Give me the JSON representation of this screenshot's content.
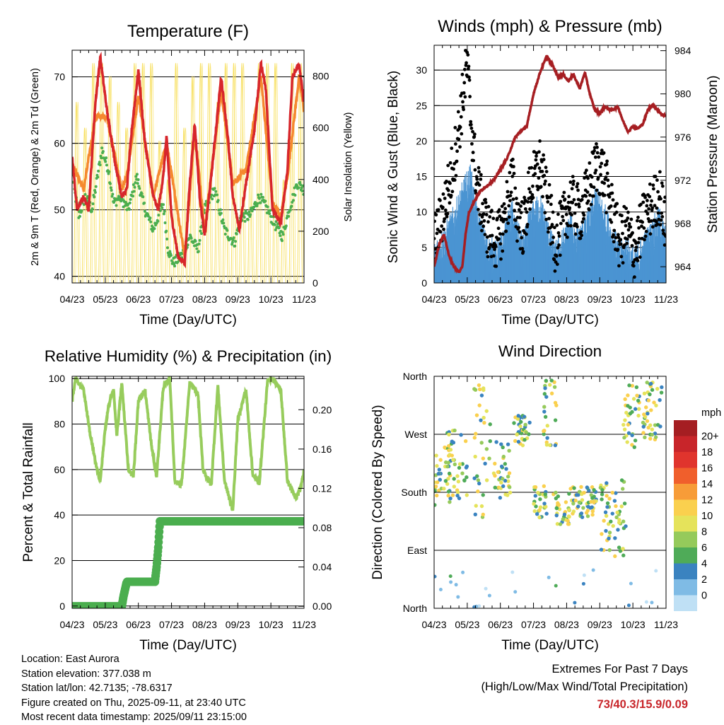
{
  "panels": {
    "temperature": {
      "title": "Temperature (F)",
      "xlabel": "Time (Day/UTC)",
      "ylabel_left": "2m & 9m T (Red, Orange) & 2m Td (Green)",
      "ylabel_right": "Solar Insolation (Yellow)"
    },
    "winds": {
      "title": "Winds (mph) & Pressure (mb)",
      "xlabel": "Time (Day/UTC)",
      "ylabel_left": "Sonic Wind & Gust (Blue, Black)",
      "ylabel_right": "Station Pressure (Maroon)"
    },
    "humidity": {
      "title": "Relative Humidity (%) & Precipitation (in)",
      "xlabel": "Time (Day/UTC)",
      "ylabel_left": "Percent & Total Rainfall"
    },
    "direction": {
      "title": "Wind Direction",
      "xlabel": "Time (Day/UTC)",
      "ylabel_left": "Direction (Colored By Speed)",
      "legend_title": "mph"
    }
  },
  "footer": {
    "location": "Location: East Aurora",
    "elevation": "Station elevation: 377.038 m",
    "latlon": "Station lat/lon: 42.7135; -78.6317",
    "created": "Figure created on Thu, 2025-09-11, at 23:40 UTC",
    "latest": "Most recent data timestamp: 2025/09/11 23:15:00"
  },
  "extremes": {
    "line1": "Extremes For Past 7 Days",
    "line2": "(High/Low/Max Wind/Total Precipitation)",
    "values": "73/40.3/15.9/0.09"
  },
  "colors": {
    "temp_2m": "#d7262b",
    "temp_9m": "#f5892f",
    "dewpoint": "#4bae4f",
    "solar": "#f7df5e",
    "wind": "#4b94d2",
    "gust": "#000000",
    "pressure": "#a61e22",
    "rh": "#97cc5c",
    "precip": "#4bae4f"
  },
  "chart_data": [
    {
      "type": "line",
      "id": "temperature",
      "title": "Temperature (F)",
      "xlabel": "Time (Day/UTC)",
      "ylabel": "2m & 9m T (Red, Orange) & 2m Td (Green)",
      "y2label": "Solar Insolation (Yellow)",
      "x_ticks": [
        "04/23",
        "05/23",
        "06/23",
        "07/23",
        "08/23",
        "09/23",
        "10/23",
        "11/23"
      ],
      "xlim": [
        0,
        7
      ],
      "ylim": [
        39,
        74
      ],
      "y_ticks": [
        40,
        50,
        60,
        70
      ],
      "y2lim": [
        0,
        900
      ],
      "y2_ticks": [
        0,
        200,
        400,
        600,
        800
      ],
      "grid": "horizontal",
      "series": [
        {
          "name": "2m T",
          "color": "#d7262b",
          "x": [
            0,
            0.15,
            0.35,
            0.5,
            0.7,
            0.85,
            1.05,
            1.3,
            1.5,
            1.65,
            1.8,
            2.0,
            2.2,
            2.45,
            2.6,
            2.75,
            2.85,
            3.0,
            3.2,
            3.4,
            3.55,
            3.7,
            3.85,
            4.0,
            4.2,
            4.5,
            4.7,
            4.85,
            5.05,
            5.25,
            5.5,
            5.7,
            5.85,
            6.05,
            6.3,
            6.5,
            6.65,
            6.85,
            7.0
          ],
          "y": [
            58,
            50,
            52,
            50,
            66,
            73,
            65,
            57,
            52,
            53,
            62,
            71,
            60,
            52,
            50,
            55,
            61,
            49,
            43,
            42,
            54,
            63,
            52,
            46,
            55,
            70,
            61,
            52,
            47,
            54,
            62,
            72,
            68,
            50,
            48,
            56,
            70,
            72,
            66
          ]
        },
        {
          "name": "9m T",
          "color": "#f5892f",
          "x": [
            0,
            0.35,
            0.7,
            1.05,
            1.5,
            1.65,
            2.0,
            2.45,
            2.85,
            3.4,
            3.7,
            4.0,
            4.5,
            4.85,
            5.25,
            5.7,
            6.05,
            6.3,
            6.5,
            6.85,
            7.0
          ],
          "y": [
            57,
            53,
            64,
            64,
            53,
            55,
            67,
            52,
            60,
            43,
            62,
            47,
            68,
            54,
            56,
            70,
            51,
            49,
            55,
            70,
            65
          ]
        },
        {
          "name": "2m Td",
          "color": "#4bae4f",
          "x": [
            0,
            0.2,
            0.4,
            0.6,
            0.9,
            1.1,
            1.25,
            1.45,
            1.7,
            1.95,
            2.2,
            2.45,
            2.75,
            2.9,
            3.05,
            3.3,
            3.55,
            3.8,
            4.0,
            4.3,
            4.6,
            4.9,
            5.1,
            5.35,
            5.65,
            5.9,
            6.1,
            6.35,
            6.55,
            6.8,
            7.0
          ],
          "y": [
            55,
            49,
            52,
            50,
            59,
            56,
            51,
            52,
            50,
            55,
            50,
            47,
            51,
            44,
            42,
            43,
            46,
            44,
            50,
            53,
            47,
            45,
            49,
            49,
            52,
            50,
            48,
            46,
            50,
            54,
            53
          ]
        }
      ],
      "solar_insolation": {
        "name": "Solar Insolation",
        "color": "#f7df5e",
        "axis": "y2",
        "daily_peaks": [
          700,
          600,
          850,
          850,
          800,
          700,
          600,
          850,
          850,
          850,
          550,
          400,
          850,
          600,
          800,
          850,
          850,
          700,
          850,
          850,
          850,
          500,
          850,
          850,
          850,
          400,
          850,
          850
        ],
        "pattern": "daily"
      }
    },
    {
      "type": "line",
      "id": "winds",
      "title": "Winds (mph) & Pressure (mb)",
      "xlabel": "Time (Day/UTC)",
      "ylabel": "Sonic Wind & Gust (Blue, Black)",
      "y2label": "Station Pressure (Maroon)",
      "x_ticks": [
        "04/23",
        "05/23",
        "06/23",
        "07/23",
        "08/23",
        "09/23",
        "10/23",
        "11/23"
      ],
      "xlim": [
        0,
        7
      ],
      "ylim": [
        0,
        33.5
      ],
      "y_ticks": [
        0,
        5,
        10,
        15,
        20,
        25,
        30
      ],
      "y2lim": [
        962.5,
        984.5
      ],
      "y2_ticks": [
        964,
        968,
        972,
        976,
        980,
        984
      ],
      "grid": "horizontal",
      "series": [
        {
          "name": "Sonic Wind",
          "color": "#4b94d2",
          "x": [
            0,
            0.25,
            0.5,
            0.75,
            0.9,
            1.1,
            1.3,
            1.6,
            1.9,
            2.1,
            2.35,
            2.5,
            2.7,
            2.9,
            3.2,
            3.45,
            3.65,
            3.9,
            4.1,
            4.4,
            4.7,
            4.9,
            5.1,
            5.35,
            5.6,
            5.8,
            6.05,
            6.3,
            6.55,
            6.8,
            7.0
          ],
          "y": [
            3,
            5,
            7,
            10,
            12,
            14,
            8,
            4,
            3,
            5,
            9,
            6,
            4,
            8,
            10,
            6,
            3,
            5,
            7,
            5,
            8,
            11,
            9,
            6,
            3,
            4,
            2,
            4,
            6,
            8,
            5
          ]
        },
        {
          "name": "Gust",
          "color": "#000000",
          "x": [
            0,
            0.25,
            0.5,
            0.75,
            0.9,
            1.0,
            1.1,
            1.3,
            1.6,
            1.9,
            2.1,
            2.35,
            2.5,
            2.7,
            2.9,
            3.2,
            3.45,
            3.65,
            3.9,
            4.1,
            4.4,
            4.7,
            4.9,
            5.1,
            5.35,
            5.6,
            5.8,
            6.05,
            6.3,
            6.55,
            6.8,
            7.0
          ],
          "y": [
            6,
            10,
            15,
            22,
            28,
            31,
            24,
            14,
            8,
            6,
            9,
            15,
            10,
            8,
            14,
            17,
            11,
            6,
            9,
            12,
            10,
            14,
            17,
            16,
            11,
            6,
            8,
            5,
            9,
            11,
            13,
            8
          ]
        },
        {
          "name": "Station Pressure",
          "color": "#a61e22",
          "axis": "y2",
          "x": [
            0,
            0.15,
            0.3,
            0.45,
            0.6,
            0.75,
            0.85,
            0.95,
            1.05,
            1.2,
            1.4,
            1.6,
            1.8,
            2.0,
            2.2,
            2.45,
            2.6,
            2.8,
            3.0,
            3.2,
            3.4,
            3.6,
            3.75,
            3.9,
            4.05,
            4.2,
            4.4,
            4.55,
            4.7,
            4.85,
            5.0,
            5.15,
            5.35,
            5.55,
            5.7,
            5.85,
            6.0,
            6.15,
            6.3,
            6.45,
            6.6,
            6.75,
            6.9,
            7.0
          ],
          "y": [
            964,
            966,
            967,
            965,
            964,
            963.5,
            964,
            967,
            969,
            970,
            971,
            971.5,
            972,
            973,
            974,
            976,
            976.5,
            977,
            980,
            982,
            983.5,
            982.5,
            981.5,
            981.8,
            981.2,
            981.8,
            980.5,
            982,
            980,
            978.5,
            978.2,
            978.8,
            978.5,
            978.8,
            977.5,
            976.5,
            977,
            976.8,
            977.2,
            978.5,
            979,
            978.5,
            978,
            978
          ]
        }
      ]
    },
    {
      "type": "line",
      "id": "humidity",
      "title": "Relative Humidity (%) & Precipitation (in)",
      "xlabel": "Time (Day/UTC)",
      "ylabel": "Percent & Total Rainfall",
      "x_ticks": [
        "04/23",
        "05/23",
        "06/23",
        "07/23",
        "08/23",
        "09/23",
        "10/23",
        "11/23"
      ],
      "xlim": [
        0,
        7
      ],
      "ylim": [
        -1,
        101
      ],
      "y_ticks": [
        0,
        20,
        40,
        60,
        80,
        100
      ],
      "y2lim": [
        -0.002,
        0.234
      ],
      "y2_ticks": [
        0.0,
        0.04,
        0.08,
        0.12,
        0.16,
        0.2
      ],
      "y2_tick_labels": [
        "0.00",
        "0.04",
        "0.08",
        "0.12",
        "0.16",
        "0.20"
      ],
      "grid": "horizontal",
      "series": [
        {
          "name": "Relative Humidity",
          "color": "#97cc5c",
          "x": [
            0,
            0.1,
            0.2,
            0.35,
            0.55,
            0.75,
            0.85,
            1.0,
            1.1,
            1.25,
            1.35,
            1.5,
            1.7,
            1.85,
            2.0,
            2.2,
            2.4,
            2.55,
            2.75,
            2.95,
            3.1,
            3.3,
            3.55,
            3.8,
            3.95,
            4.2,
            4.4,
            4.6,
            4.85,
            5.0,
            5.25,
            5.45,
            5.65,
            5.9,
            6.05,
            6.3,
            6.5,
            6.75,
            6.9,
            7.0
          ],
          "y": [
            90,
            100,
            98,
            95,
            75,
            60,
            55,
            78,
            88,
            95,
            75,
            98,
            60,
            57,
            90,
            95,
            70,
            57,
            96,
            100,
            55,
            53,
            98,
            93,
            60,
            53,
            97,
            55,
            42,
            82,
            95,
            58,
            54,
            99,
            100,
            95,
            55,
            47,
            52,
            60
          ]
        },
        {
          "name": "Total Rainfall",
          "color": "#4bae4f",
          "axis": "y2",
          "x": [
            0,
            1.5,
            1.55,
            1.65,
            2.5,
            2.55,
            2.6,
            2.65,
            7.0
          ],
          "y": [
            0,
            0,
            0.01,
            0.025,
            0.025,
            0.04,
            0.06,
            0.0865,
            0.0865
          ]
        }
      ]
    },
    {
      "type": "scatter",
      "id": "direction",
      "title": "Wind Direction",
      "xlabel": "Time (Day/UTC)",
      "ylabel": "Direction (Colored By Speed)",
      "x_ticks": [
        "04/23",
        "05/23",
        "06/23",
        "07/23",
        "08/23",
        "09/23",
        "10/23",
        "11/23"
      ],
      "xlim": [
        0,
        7
      ],
      "ylim": [
        0,
        360
      ],
      "y_tick_labels": [
        "North",
        "East",
        "South",
        "West",
        "North"
      ],
      "y_ticks": [
        0,
        90,
        180,
        270,
        360
      ],
      "grid": "horizontal",
      "color_by": "speed",
      "colorbar": {
        "title": "mph",
        "labels": [
          "20+",
          "18",
          "16",
          "14",
          "12",
          "10",
          "8",
          "6",
          "4",
          "2",
          "0"
        ],
        "colors": [
          "#a51e22",
          "#c8252a",
          "#e0342d",
          "#f05f2c",
          "#f79c38",
          "#fad04e",
          "#e5e35b",
          "#95ca5b",
          "#4fab58",
          "#3a83c0",
          "#7fbbe5",
          "#bfe0f5"
        ]
      },
      "clusters": [
        {
          "x": [
            0.0,
            0.5
          ],
          "y": [
            160,
            250
          ]
        },
        {
          "x": [
            0.4,
            1.0
          ],
          "y": [
            170,
            280
          ]
        },
        {
          "x": [
            1.2,
            1.7
          ],
          "y": [
            120,
            350
          ]
        },
        {
          "x": [
            1.8,
            2.3
          ],
          "y": [
            170,
            260
          ]
        },
        {
          "x": [
            2.4,
            2.9
          ],
          "y": [
            250,
            300
          ]
        },
        {
          "x": [
            3.0,
            3.4
          ],
          "y": [
            140,
            190
          ]
        },
        {
          "x": [
            3.3,
            3.7
          ],
          "y": [
            250,
            360
          ]
        },
        {
          "x": [
            3.6,
            4.1
          ],
          "y": [
            130,
            180
          ]
        },
        {
          "x": [
            4.1,
            4.9
          ],
          "y": [
            140,
            190
          ]
        },
        {
          "x": [
            5.0,
            5.8
          ],
          "y": [
            80,
            200
          ]
        },
        {
          "x": [
            5.7,
            6.2
          ],
          "y": [
            250,
            360
          ]
        },
        {
          "x": [
            6.3,
            6.9
          ],
          "y": [
            260,
            360
          ]
        }
      ]
    }
  ]
}
